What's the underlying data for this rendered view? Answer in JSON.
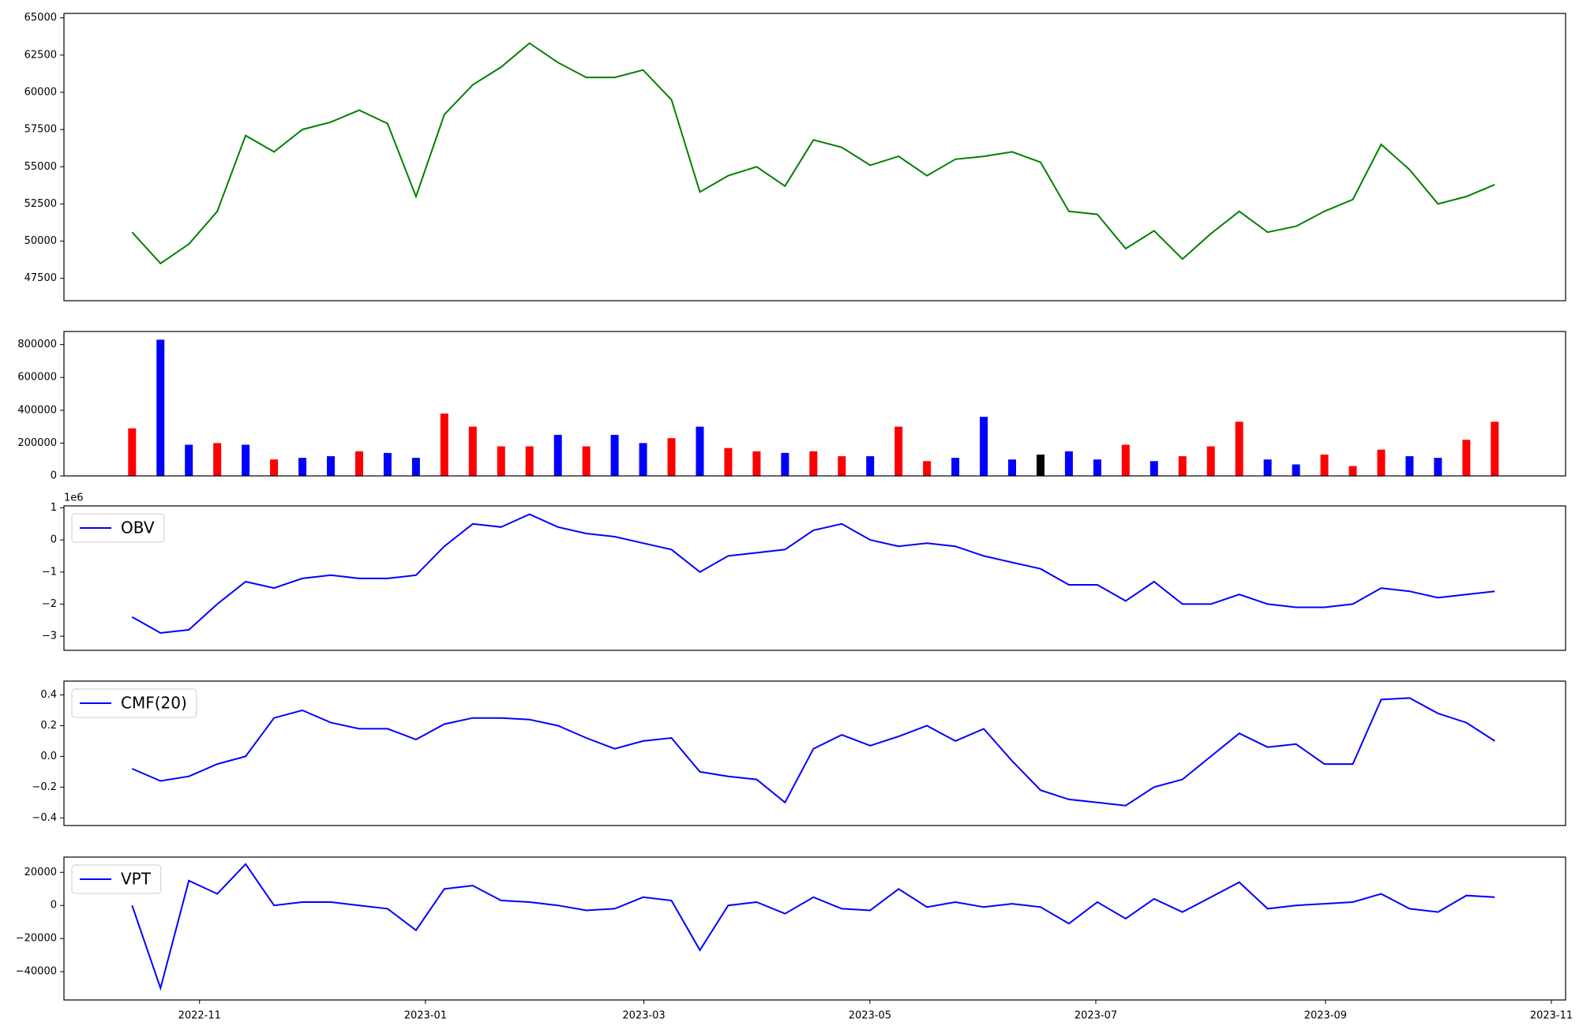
{
  "chart_data": [
    {
      "type": "line",
      "color": "#008000",
      "x": [
        2022.783,
        2022.804,
        2022.825,
        2022.846,
        2022.867,
        2022.888,
        2022.909,
        2022.93,
        2022.951,
        2022.972,
        2022.993,
        2023.014,
        2023.035,
        2023.056,
        2023.077,
        2023.098,
        2023.119,
        2023.14,
        2023.161,
        2023.182,
        2023.203,
        2023.224,
        2023.245,
        2023.266,
        2023.287,
        2023.308,
        2023.329,
        2023.35,
        2023.371,
        2023.392,
        2023.413,
        2023.434,
        2023.455,
        2023.476,
        2023.497,
        2023.518,
        2023.539,
        2023.56,
        2023.581,
        2023.602,
        2023.623,
        2023.644,
        2023.665,
        2023.686,
        2023.707,
        2023.728,
        2023.749,
        2023.77,
        2023.791
      ],
      "values": [
        50600,
        48500,
        49800,
        52000,
        57100,
        56000,
        57500,
        58000,
        58800,
        57900,
        53000,
        58500,
        60500,
        61700,
        63300,
        62000,
        61000,
        61000,
        61500,
        59500,
        53300,
        54400,
        55000,
        53700,
        56800,
        56300,
        55100,
        55700,
        54400,
        55500,
        55700,
        56000,
        55300,
        52000,
        51800,
        49500,
        50700,
        48800,
        50500,
        52000,
        50600,
        51000,
        52000,
        52800,
        56500,
        54800,
        52500,
        53000,
        53800
      ],
      "xlim": [
        2022.7326,
        2023.8434
      ],
      "ylim": [
        46000,
        65300
      ],
      "yticks": [
        47500,
        50000,
        52500,
        55000,
        57500,
        60000,
        62500,
        65000
      ]
    },
    {
      "type": "bar",
      "x": [
        2022.783,
        2022.804,
        2022.825,
        2022.846,
        2022.867,
        2022.888,
        2022.909,
        2022.93,
        2022.951,
        2022.972,
        2022.993,
        2023.014,
        2023.035,
        2023.056,
        2023.077,
        2023.098,
        2023.119,
        2023.14,
        2023.161,
        2023.182,
        2023.203,
        2023.224,
        2023.245,
        2023.266,
        2023.287,
        2023.308,
        2023.329,
        2023.35,
        2023.371,
        2023.392,
        2023.413,
        2023.434,
        2023.455,
        2023.476,
        2023.497,
        2023.518,
        2023.539,
        2023.56,
        2023.581,
        2023.602,
        2023.623,
        2023.644,
        2023.665,
        2023.686,
        2023.707,
        2023.728,
        2023.749,
        2023.77,
        2023.791
      ],
      "values": [
        290000,
        830000,
        190000,
        200000,
        190000,
        100000,
        110000,
        120000,
        150000,
        140000,
        110000,
        380000,
        300000,
        180000,
        180000,
        250000,
        180000,
        250000,
        200000,
        230000,
        300000,
        170000,
        150000,
        140000,
        150000,
        120000,
        120000,
        300000,
        90000,
        110000,
        360000,
        100000,
        130000,
        150000,
        100000,
        190000,
        90000,
        120000,
        180000,
        330000,
        100000,
        70000,
        130000,
        60000,
        160000,
        120000,
        110000,
        220000,
        330000
      ],
      "colors": [
        "#ff0000",
        "#0000ff",
        "#0000ff",
        "#ff0000",
        "#0000ff",
        "#ff0000",
        "#0000ff",
        "#0000ff",
        "#ff0000",
        "#0000ff",
        "#0000ff",
        "#ff0000",
        "#ff0000",
        "#ff0000",
        "#ff0000",
        "#0000ff",
        "#ff0000",
        "#0000ff",
        "#0000ff",
        "#ff0000",
        "#0000ff",
        "#ff0000",
        "#ff0000",
        "#0000ff",
        "#ff0000",
        "#ff0000",
        "#0000ff",
        "#ff0000",
        "#ff0000",
        "#0000ff",
        "#0000ff",
        "#0000ff",
        "#000000",
        "#0000ff",
        "#0000ff",
        "#ff0000",
        "#0000ff",
        "#ff0000",
        "#ff0000",
        "#ff0000",
        "#0000ff",
        "#0000ff",
        "#ff0000",
        "#ff0000",
        "#ff0000",
        "#0000ff",
        "#0000ff",
        "#ff0000",
        "#ff0000"
      ],
      "xlim": [
        2022.7326,
        2023.8434
      ],
      "ylim": [
        0,
        880000
      ],
      "yticks": [
        0,
        200000,
        400000,
        600000,
        800000
      ]
    },
    {
      "type": "line",
      "y_offset_label": "1e6",
      "legend": "upper left",
      "x": [
        2022.783,
        2022.804,
        2022.825,
        2022.846,
        2022.867,
        2022.888,
        2022.909,
        2022.93,
        2022.951,
        2022.972,
        2022.993,
        2023.014,
        2023.035,
        2023.056,
        2023.077,
        2023.098,
        2023.119,
        2023.14,
        2023.161,
        2023.182,
        2023.203,
        2023.224,
        2023.245,
        2023.266,
        2023.287,
        2023.308,
        2023.329,
        2023.35,
        2023.371,
        2023.392,
        2023.413,
        2023.434,
        2023.455,
        2023.476,
        2023.497,
        2023.518,
        2023.539,
        2023.56,
        2023.581,
        2023.602,
        2023.623,
        2023.644,
        2023.665,
        2023.686,
        2023.707,
        2023.728,
        2023.749,
        2023.77,
        2023.791
      ],
      "series": [
        {
          "name": "OBV",
          "color": "#0000ff",
          "values": [
            -2.4,
            -2.9,
            -2.8,
            -2.0,
            -1.3,
            -1.5,
            -1.2,
            -1.1,
            -1.2,
            -1.2,
            -1.1,
            -0.2,
            0.5,
            0.4,
            0.8,
            0.4,
            0.2,
            0.1,
            -0.1,
            -0.3,
            -1.0,
            -0.5,
            -0.4,
            -0.3,
            0.3,
            0.5,
            0.0,
            -0.2,
            -0.1,
            -0.2,
            -0.5,
            -0.7,
            -0.9,
            -1.4,
            -1.4,
            -1.9,
            -1.3,
            -2.0,
            -2.0,
            -1.7,
            -2.0,
            -2.1,
            -2.1,
            -2.0,
            -1.5,
            -1.6,
            -1.8,
            -1.7,
            -1.6
          ]
        }
      ],
      "xlim": [
        2022.7326,
        2023.8434
      ],
      "ylim": [
        -3.44,
        1.06
      ],
      "yticks": [
        {
          "value": -3,
          "label": "−3"
        },
        {
          "value": -2,
          "label": "−2"
        },
        {
          "value": -1,
          "label": "−1"
        },
        0,
        1
      ]
    },
    {
      "type": "line",
      "legend": "upper left",
      "x": [
        2022.783,
        2022.804,
        2022.825,
        2022.846,
        2022.867,
        2022.888,
        2022.909,
        2022.93,
        2022.951,
        2022.972,
        2022.993,
        2023.014,
        2023.035,
        2023.056,
        2023.077,
        2023.098,
        2023.119,
        2023.14,
        2023.161,
        2023.182,
        2023.203,
        2023.224,
        2023.245,
        2023.266,
        2023.287,
        2023.308,
        2023.329,
        2023.35,
        2023.371,
        2023.392,
        2023.413,
        2023.434,
        2023.455,
        2023.476,
        2023.497,
        2023.518,
        2023.539,
        2023.56,
        2023.581,
        2023.602,
        2023.623,
        2023.644,
        2023.665,
        2023.686,
        2023.707,
        2023.728,
        2023.749,
        2023.77,
        2023.791
      ],
      "series": [
        {
          "name": "CMF(20)",
          "color": "#0000ff",
          "values": [
            -0.08,
            -0.16,
            -0.13,
            -0.05,
            0.0,
            0.25,
            0.3,
            0.22,
            0.18,
            0.18,
            0.11,
            0.21,
            0.25,
            0.25,
            0.24,
            0.2,
            0.12,
            0.05,
            0.1,
            0.12,
            -0.1,
            -0.13,
            -0.15,
            -0.3,
            0.05,
            0.14,
            0.07,
            0.13,
            0.2,
            0.1,
            0.18,
            -0.03,
            -0.22,
            -0.28,
            -0.3,
            -0.32,
            -0.2,
            -0.15,
            0.0,
            0.15,
            0.06,
            0.08,
            -0.05,
            -0.05,
            0.37,
            0.38,
            0.28,
            0.22,
            0.1
          ]
        }
      ],
      "xlim": [
        2022.7326,
        2023.8434
      ],
      "ylim": [
        -0.45,
        0.49
      ],
      "yticks": [
        {
          "value": -0.4,
          "label": "−0.4"
        },
        {
          "value": -0.2,
          "label": "−0.2"
        },
        {
          "value": 0,
          "label": "0.0"
        },
        0.2,
        0.4
      ]
    },
    {
      "type": "line",
      "legend": "upper left",
      "x": [
        2022.783,
        2022.804,
        2022.825,
        2022.846,
        2022.867,
        2022.888,
        2022.909,
        2022.93,
        2022.951,
        2022.972,
        2022.993,
        2023.014,
        2023.035,
        2023.056,
        2023.077,
        2023.098,
        2023.119,
        2023.14,
        2023.161,
        2023.182,
        2023.203,
        2023.224,
        2023.245,
        2023.266,
        2023.287,
        2023.308,
        2023.329,
        2023.35,
        2023.371,
        2023.392,
        2023.413,
        2023.434,
        2023.455,
        2023.476,
        2023.497,
        2023.518,
        2023.539,
        2023.56,
        2023.581,
        2023.602,
        2023.623,
        2023.644,
        2023.665,
        2023.686,
        2023.707,
        2023.728,
        2023.749,
        2023.77,
        2023.791
      ],
      "series": [
        {
          "name": "VPT",
          "color": "#0000ff",
          "values": [
            0,
            -50000,
            15000,
            7000,
            25000,
            0,
            2000,
            2000,
            0,
            -2000,
            -15000,
            10000,
            12000,
            3000,
            2000,
            0,
            -3000,
            -2000,
            5000,
            3000,
            -27000,
            0,
            2000,
            -5000,
            5000,
            -2000,
            -3000,
            10000,
            -1000,
            2000,
            -1000,
            1000,
            -1000,
            -11000,
            2000,
            -8000,
            4000,
            -4000,
            5000,
            14000,
            -2000,
            0,
            1000,
            2000,
            7000,
            -2000,
            -4000,
            6000,
            5000
          ]
        }
      ],
      "xlim": [
        2022.7326,
        2023.8434
      ],
      "ylim": [
        -57100,
        29200
      ],
      "yticks": [
        {
          "value": -40000,
          "label": "−40000"
        },
        {
          "value": -20000,
          "label": "−20000"
        },
        0,
        20000
      ],
      "xticks": [
        {
          "value": 2022.8329,
          "label": "2022-11"
        },
        {
          "value": 2023.0,
          "label": "2023-01"
        },
        {
          "value": 2023.1616,
          "label": "2023-03"
        },
        {
          "value": 2023.3288,
          "label": "2023-05"
        },
        {
          "value": 2023.4959,
          "label": "2023-07"
        },
        {
          "value": 2023.6658,
          "label": "2023-09"
        },
        {
          "value": 2023.8329,
          "label": "2023-11"
        }
      ]
    }
  ]
}
